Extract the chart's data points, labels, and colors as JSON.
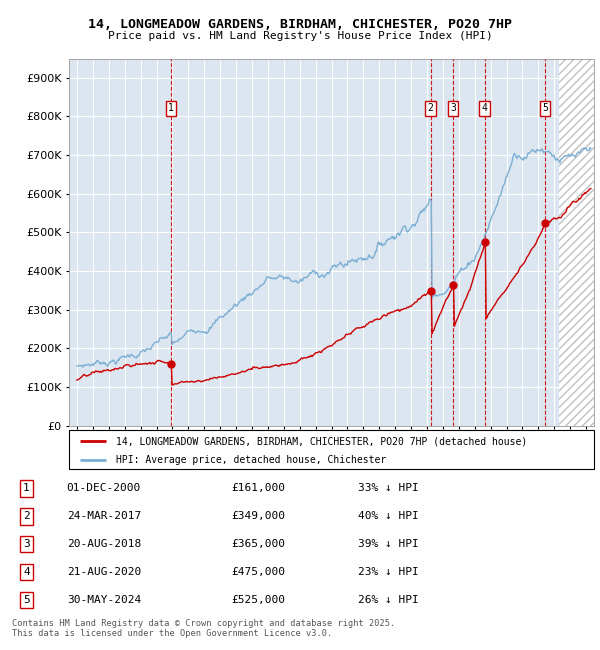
{
  "title_line1": "14, LONGMEADOW GARDENS, BIRDHAM, CHICHESTER, PO20 7HP",
  "title_line2": "Price paid vs. HM Land Registry's House Price Index (HPI)",
  "xlim": [
    1994.5,
    2027.5
  ],
  "ylim": [
    0,
    950000
  ],
  "yticks": [
    0,
    100000,
    200000,
    300000,
    400000,
    500000,
    600000,
    700000,
    800000,
    900000
  ],
  "ytick_labels": [
    "£0",
    "£100K",
    "£200K",
    "£300K",
    "£400K",
    "£500K",
    "£600K",
    "£700K",
    "£800K",
    "£900K"
  ],
  "xticks": [
    1995,
    1996,
    1997,
    1998,
    1999,
    2000,
    2001,
    2002,
    2003,
    2004,
    2005,
    2006,
    2007,
    2008,
    2009,
    2010,
    2011,
    2012,
    2013,
    2014,
    2015,
    2016,
    2017,
    2018,
    2019,
    2020,
    2021,
    2022,
    2023,
    2024,
    2025,
    2026,
    2027
  ],
  "bg_color": "#dce6f0",
  "grid_color": "#ffffff",
  "red_line_color": "#cc0000",
  "blue_line_color": "#7bafd4",
  "vline_color": "#cc0000",
  "sales": [
    {
      "num": 1,
      "year": 2000.917,
      "price": 161000,
      "label": "1"
    },
    {
      "num": 2,
      "year": 2017.23,
      "price": 349000,
      "label": "2"
    },
    {
      "num": 3,
      "year": 2018.64,
      "price": 365000,
      "label": "3"
    },
    {
      "num": 4,
      "year": 2020.64,
      "price": 475000,
      "label": "4"
    },
    {
      "num": 5,
      "year": 2024.42,
      "price": 525000,
      "label": "5"
    }
  ],
  "table_rows": [
    {
      "num": "1",
      "date": "01-DEC-2000",
      "price": "£161,000",
      "pct": "33% ↓ HPI"
    },
    {
      "num": "2",
      "date": "24-MAR-2017",
      "price": "£349,000",
      "pct": "40% ↓ HPI"
    },
    {
      "num": "3",
      "date": "20-AUG-2018",
      "price": "£365,000",
      "pct": "39% ↓ HPI"
    },
    {
      "num": "4",
      "date": "21-AUG-2020",
      "price": "£475,000",
      "pct": "23% ↓ HPI"
    },
    {
      "num": "5",
      "date": "30-MAY-2024",
      "price": "£525,000",
      "pct": "26% ↓ HPI"
    }
  ],
  "legend_line1": "14, LONGMEADOW GARDENS, BIRDHAM, CHICHESTER, PO20 7HP (detached house)",
  "legend_line2": "HPI: Average price, detached house, Chichester",
  "footer": "Contains HM Land Registry data © Crown copyright and database right 2025.\nThis data is licensed under the Open Government Licence v3.0.",
  "current_year": 2025.33
}
